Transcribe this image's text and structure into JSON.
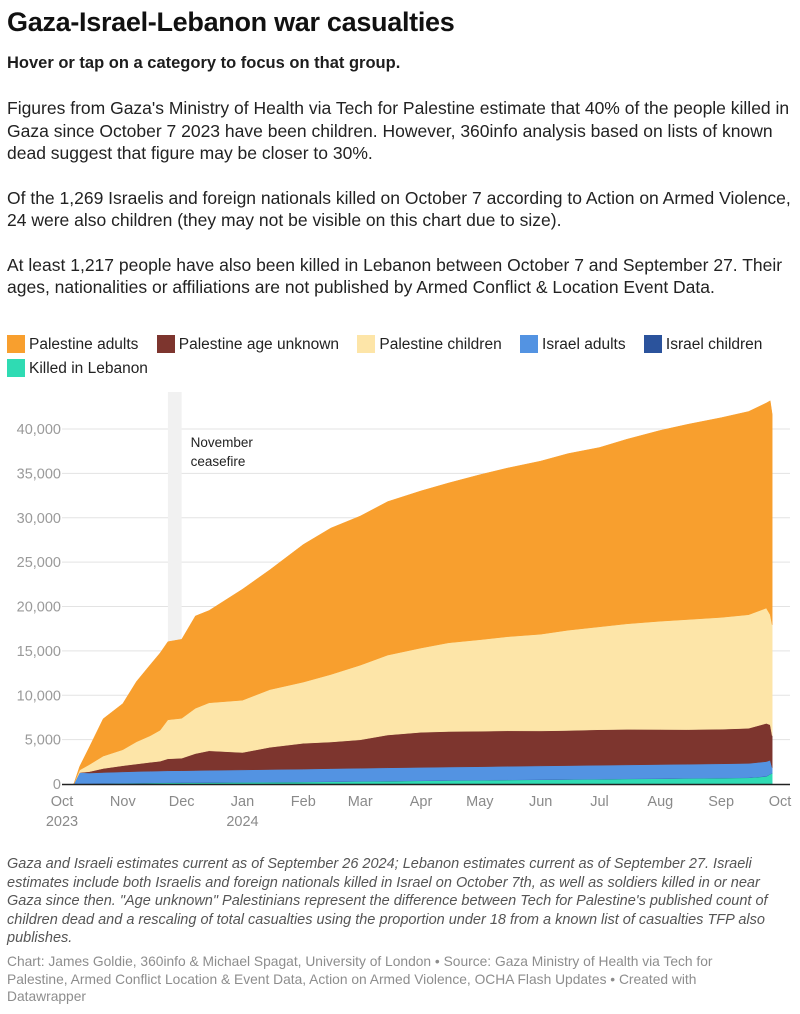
{
  "header": {
    "title": "Gaza-Israel-Lebanon war casualties",
    "subtitle": "Hover or tap on a category to focus on that group."
  },
  "intro": {
    "paragraphs": [
      "Figures from Gaza's Ministry of Health via Tech for Palestine estimate that 40% of the people killed in Gaza since October 7 2023 have been children. However, 360info analysis based on lists of known dead suggest that figure may be closer to 30%.",
      "Of the 1,269 Israelis and foreign nationals killed on October 7 according to Action on Armed Violence, 24 were also children (they may not be visible on this chart due to size).",
      "At least 1,217 people have also been killed in Lebanon between October 7 and September 27. Their ages, nationalities or affiliations are not published by Armed Conflict & Location Event Data."
    ]
  },
  "legend": [
    {
      "label": "Palestine adults",
      "color": "#f89f2e"
    },
    {
      "label": "Palestine age unknown",
      "color": "#7d352e"
    },
    {
      "label": "Palestine children",
      "color": "#fde5a8"
    },
    {
      "label": "Israel adults",
      "color": "#5393e2"
    },
    {
      "label": "Israel children",
      "color": "#2b539c"
    },
    {
      "label": "Killed in Lebanon",
      "color": "#2fdbb3"
    }
  ],
  "chart_data": {
    "type": "area",
    "stacked": true,
    "title": "Gaza-Israel-Lebanon war casualties",
    "xlabel": "",
    "ylabel": "",
    "ylim": [
      0,
      43000
    ],
    "yticks": [
      0,
      5000,
      10000,
      15000,
      20000,
      25000,
      30000,
      35000,
      40000
    ],
    "ytick_labels": [
      "0",
      "5,000",
      "10,000",
      "15,000",
      "20,000",
      "25,000",
      "30,000",
      "35,000",
      "40,000"
    ],
    "xlim": [
      "2023-10-01",
      "2024-10-01"
    ],
    "xticks": [
      {
        "date": "2023-10-01",
        "label": "Oct",
        "sublabel": "2023"
      },
      {
        "date": "2023-11-01",
        "label": "Nov",
        "sublabel": ""
      },
      {
        "date": "2023-12-01",
        "label": "Dec",
        "sublabel": ""
      },
      {
        "date": "2024-01-01",
        "label": "Jan",
        "sublabel": "2024"
      },
      {
        "date": "2024-02-01",
        "label": "Feb",
        "sublabel": ""
      },
      {
        "date": "2024-03-01",
        "label": "Mar",
        "sublabel": ""
      },
      {
        "date": "2024-04-01",
        "label": "Apr",
        "sublabel": ""
      },
      {
        "date": "2024-05-01",
        "label": "May",
        "sublabel": ""
      },
      {
        "date": "2024-06-01",
        "label": "Jun",
        "sublabel": ""
      },
      {
        "date": "2024-07-01",
        "label": "Jul",
        "sublabel": ""
      },
      {
        "date": "2024-08-01",
        "label": "Aug",
        "sublabel": ""
      },
      {
        "date": "2024-09-01",
        "label": "Sep",
        "sublabel": ""
      },
      {
        "date": "2024-10-01",
        "label": "Oct",
        "sublabel": ""
      }
    ],
    "grid": true,
    "legend_position": "top",
    "highlight_range": {
      "start": "2023-11-24",
      "end": "2023-12-01",
      "label_lines": [
        "November",
        "ceasefire"
      ]
    },
    "x": [
      "2023-10-07",
      "2023-10-10",
      "2023-10-15",
      "2023-10-22",
      "2023-11-01",
      "2023-11-08",
      "2023-11-15",
      "2023-11-20",
      "2023-11-24",
      "2023-12-01",
      "2023-12-08",
      "2023-12-15",
      "2024-01-01",
      "2024-01-15",
      "2024-02-01",
      "2024-02-15",
      "2024-03-01",
      "2024-03-15",
      "2024-04-01",
      "2024-04-15",
      "2024-05-01",
      "2024-05-15",
      "2024-06-01",
      "2024-06-15",
      "2024-07-01",
      "2024-07-15",
      "2024-08-01",
      "2024-08-15",
      "2024-09-01",
      "2024-09-15",
      "2024-09-24",
      "2024-09-26",
      "2024-09-27"
    ],
    "series": [
      {
        "name": "Killed in Lebanon",
        "color": "#2fdbb3",
        "values": [
          0,
          5,
          20,
          40,
          70,
          90,
          110,
          120,
          130,
          140,
          150,
          160,
          180,
          200,
          230,
          260,
          290,
          320,
          360,
          390,
          420,
          450,
          480,
          510,
          540,
          570,
          600,
          630,
          660,
          700,
          850,
          1100,
          1217
        ]
      },
      {
        "name": "Israel children",
        "color": "#2b539c",
        "values": [
          0,
          24,
          24,
          24,
          24,
          24,
          24,
          24,
          24,
          24,
          24,
          24,
          24,
          24,
          24,
          24,
          24,
          24,
          24,
          24,
          24,
          24,
          24,
          24,
          24,
          24,
          24,
          24,
          24,
          24,
          24,
          24,
          24
        ]
      },
      {
        "name": "Israel adults",
        "color": "#5393e2",
        "values": [
          0,
          1250,
          1200,
          1230,
          1270,
          1290,
          1310,
          1320,
          1330,
          1340,
          1350,
          1360,
          1390,
          1410,
          1430,
          1450,
          1470,
          1480,
          1490,
          1500,
          1510,
          1520,
          1530,
          1540,
          1550,
          1560,
          1570,
          1580,
          1590,
          1600,
          1650,
          1550,
          600
        ]
      },
      {
        "name": "Palestine age unknown",
        "color": "#7d352e",
        "values": [
          0,
          0,
          150,
          450,
          700,
          850,
          1000,
          1100,
          1350,
          1400,
          1900,
          2200,
          1950,
          2500,
          2900,
          3000,
          3200,
          3700,
          3950,
          4000,
          4000,
          4000,
          3950,
          3950,
          4000,
          4000,
          3950,
          3900,
          3900,
          3950,
          4300,
          4000,
          3600
        ]
      },
      {
        "name": "Palestine children",
        "color": "#fde5a8",
        "values": [
          0,
          300,
          800,
          1400,
          1800,
          2500,
          3000,
          3500,
          4400,
          4500,
          5100,
          5400,
          5900,
          6500,
          6900,
          7600,
          8400,
          9000,
          9500,
          10000,
          10300,
          10600,
          10900,
          11300,
          11600,
          11900,
          12200,
          12400,
          12600,
          12800,
          13000,
          12400,
          12500
        ]
      },
      {
        "name": "Palestine adults",
        "color": "#f89f2e",
        "values": [
          0,
          400,
          2000,
          4200,
          5200,
          6800,
          8000,
          8700,
          8800,
          8900,
          10400,
          10400,
          12500,
          13500,
          15500,
          16500,
          16800,
          17300,
          17700,
          18000,
          18600,
          19000,
          19500,
          19900,
          20200,
          20800,
          21500,
          22000,
          22500,
          22900,
          23100,
          24100,
          23700
        ]
      }
    ]
  },
  "notes": "Gaza and Israeli estimates current as of September 26 2024; Lebanon estimates current as of September 27. Israeli estimates include both Israelis and foreign nationals killed in Israel on October 7th, as well as soldiers killed in or near Gaza since then. \"Age unknown\" Palestinians represent the difference between Tech for Palestine's published count of children dead and a rescaling of total casualties using the proportion under 18 from a known list of casualties TFP also publishes.",
  "byline": "Chart: James Goldie, 360info & Michael Spagat, University of London • Source: Gaza Ministry of Health via Tech for Palestine, Armed Conflict Location & Event Data, Action on Armed Violence, OCHA Flash Updates • Created with Datawrapper"
}
